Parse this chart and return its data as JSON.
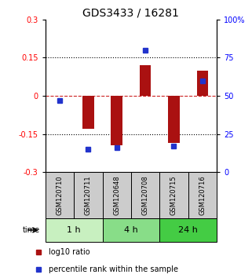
{
  "title": "GDS3433 / 16281",
  "samples": [
    "GSM120710",
    "GSM120711",
    "GSM120648",
    "GSM120708",
    "GSM120715",
    "GSM120716"
  ],
  "groups": [
    {
      "label": "1 h",
      "indices": [
        0,
        1
      ],
      "color": "#c8f0c0"
    },
    {
      "label": "4 h",
      "indices": [
        2,
        3
      ],
      "color": "#88dd88"
    },
    {
      "label": "24 h",
      "indices": [
        4,
        5
      ],
      "color": "#44cc44"
    }
  ],
  "log10_ratio": [
    0.0,
    -0.13,
    -0.195,
    0.12,
    -0.185,
    0.1
  ],
  "percentile_rank": [
    47,
    15,
    16,
    80,
    17,
    60
  ],
  "ylim_left": [
    -0.3,
    0.3
  ],
  "ylim_right": [
    0,
    100
  ],
  "yticks_left": [
    -0.3,
    -0.15,
    0,
    0.15,
    0.3
  ],
  "yticks_right": [
    0,
    25,
    50,
    75,
    100
  ],
  "bar_color": "#aa1111",
  "dot_color": "#2233cc",
  "hline_color": "#cc2222",
  "dotline_color": "black",
  "title_fontsize": 10,
  "tick_fontsize": 7,
  "sample_fontsize": 6,
  "group_fontsize": 8,
  "legend_fontsize": 7,
  "bar_width": 0.4,
  "dot_size": 4,
  "sample_box_color": "#cccccc",
  "fig_bg": "#ffffff"
}
